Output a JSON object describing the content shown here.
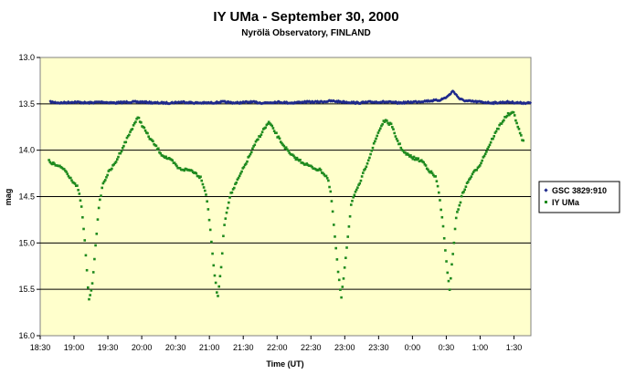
{
  "chart_data": {
    "type": "scatter",
    "title": "IY UMa - September 30, 2000",
    "subtitle": "Nyrölä Observatory, FINLAND",
    "xlabel": "Time (UT)",
    "ylabel": "mag",
    "x_ticks": [
      "18:30",
      "19:00",
      "19:30",
      "20:00",
      "20:30",
      "21:00",
      "21:30",
      "22:00",
      "22:30",
      "23:00",
      "23:30",
      "0:00",
      "0:30",
      "1:00",
      "1:30"
    ],
    "x_range_hours": [
      18.5,
      25.75
    ],
    "y_ticks": [
      "13.0",
      "13.5",
      "14.0",
      "14.5",
      "15.0",
      "15.5",
      "16.0"
    ],
    "ylim": [
      13.0,
      16.0
    ],
    "y_reversed": true,
    "grid": "horizontal",
    "legend_position": "right",
    "colors": {
      "plot_bg": "#FFFFCC",
      "comparison": "#1F2A8C",
      "target": "#1E8A1E"
    },
    "series": [
      {
        "name": "GSC 3829:910",
        "color": "#1F2A8C",
        "marker": "diamond",
        "points": [
          [
            18.65,
            13.48
          ],
          [
            18.8,
            13.49
          ],
          [
            19.0,
            13.48
          ],
          [
            19.2,
            13.49
          ],
          [
            19.4,
            13.48
          ],
          [
            19.6,
            13.49
          ],
          [
            19.8,
            13.48
          ],
          [
            20.0,
            13.48
          ],
          [
            20.2,
            13.49
          ],
          [
            20.4,
            13.49
          ],
          [
            20.6,
            13.48
          ],
          [
            20.8,
            13.49
          ],
          [
            21.0,
            13.49
          ],
          [
            21.2,
            13.48
          ],
          [
            21.4,
            13.49
          ],
          [
            21.6,
            13.48
          ],
          [
            21.8,
            13.49
          ],
          [
            22.0,
            13.48
          ],
          [
            22.2,
            13.49
          ],
          [
            22.4,
            13.48
          ],
          [
            22.6,
            13.48
          ],
          [
            22.8,
            13.47
          ],
          [
            23.0,
            13.48
          ],
          [
            23.2,
            13.49
          ],
          [
            23.4,
            13.48
          ],
          [
            23.6,
            13.48
          ],
          [
            23.8,
            13.49
          ],
          [
            24.0,
            13.48
          ],
          [
            24.2,
            13.47
          ],
          [
            24.4,
            13.46
          ],
          [
            24.5,
            13.43
          ],
          [
            24.55,
            13.4
          ],
          [
            24.6,
            13.36
          ],
          [
            24.7,
            13.45
          ],
          [
            24.8,
            13.47
          ],
          [
            25.0,
            13.48
          ],
          [
            25.2,
            13.49
          ],
          [
            25.4,
            13.48
          ],
          [
            25.6,
            13.49
          ],
          [
            25.75,
            13.49
          ]
        ]
      },
      {
        "name": "IY UMa",
        "color": "#1E8A1E",
        "marker": "square",
        "points": [
          [
            18.63,
            14.12
          ],
          [
            18.75,
            14.17
          ],
          [
            18.85,
            14.2
          ],
          [
            18.95,
            14.3
          ],
          [
            19.05,
            14.4
          ],
          [
            19.1,
            14.55
          ],
          [
            19.15,
            14.9
          ],
          [
            19.18,
            15.2
          ],
          [
            19.22,
            15.62
          ],
          [
            19.27,
            15.45
          ],
          [
            19.32,
            15.0
          ],
          [
            19.37,
            14.6
          ],
          [
            19.42,
            14.38
          ],
          [
            19.5,
            14.25
          ],
          [
            19.6,
            14.15
          ],
          [
            19.7,
            14.0
          ],
          [
            19.8,
            13.85
          ],
          [
            19.9,
            13.7
          ],
          [
            19.95,
            13.65
          ],
          [
            20.0,
            13.72
          ],
          [
            20.1,
            13.85
          ],
          [
            20.2,
            13.95
          ],
          [
            20.3,
            14.05
          ],
          [
            20.45,
            14.12
          ],
          [
            20.55,
            14.2
          ],
          [
            20.75,
            14.22
          ],
          [
            20.88,
            14.3
          ],
          [
            20.96,
            14.5
          ],
          [
            21.02,
            14.9
          ],
          [
            21.07,
            15.3
          ],
          [
            21.12,
            15.6
          ],
          [
            21.17,
            15.3
          ],
          [
            21.22,
            14.8
          ],
          [
            21.3,
            14.5
          ],
          [
            21.4,
            14.35
          ],
          [
            21.5,
            14.2
          ],
          [
            21.6,
            14.05
          ],
          [
            21.7,
            13.9
          ],
          [
            21.8,
            13.78
          ],
          [
            21.88,
            13.7
          ],
          [
            21.95,
            13.78
          ],
          [
            22.05,
            13.9
          ],
          [
            22.2,
            14.05
          ],
          [
            22.35,
            14.12
          ],
          [
            22.5,
            14.18
          ],
          [
            22.65,
            14.22
          ],
          [
            22.75,
            14.3
          ],
          [
            22.8,
            14.5
          ],
          [
            22.85,
            14.9
          ],
          [
            22.9,
            15.3
          ],
          [
            22.95,
            15.6
          ],
          [
            23.0,
            15.25
          ],
          [
            23.05,
            14.9
          ],
          [
            23.1,
            14.55
          ],
          [
            23.2,
            14.4
          ],
          [
            23.3,
            14.2
          ],
          [
            23.4,
            14.0
          ],
          [
            23.5,
            13.8
          ],
          [
            23.58,
            13.68
          ],
          [
            23.68,
            13.72
          ],
          [
            23.78,
            13.9
          ],
          [
            23.88,
            14.03
          ],
          [
            24.0,
            14.08
          ],
          [
            24.15,
            14.12
          ],
          [
            24.25,
            14.22
          ],
          [
            24.35,
            14.3
          ],
          [
            24.4,
            14.5
          ],
          [
            24.45,
            14.8
          ],
          [
            24.5,
            15.2
          ],
          [
            24.55,
            15.5
          ],
          [
            24.6,
            15.1
          ],
          [
            24.65,
            14.7
          ],
          [
            24.75,
            14.45
          ],
          [
            24.85,
            14.3
          ],
          [
            25.0,
            14.15
          ],
          [
            25.1,
            14.0
          ],
          [
            25.2,
            13.85
          ],
          [
            25.3,
            13.72
          ],
          [
            25.4,
            13.62
          ],
          [
            25.5,
            13.6
          ],
          [
            25.58,
            13.8
          ],
          [
            25.65,
            13.93
          ]
        ]
      }
    ]
  }
}
